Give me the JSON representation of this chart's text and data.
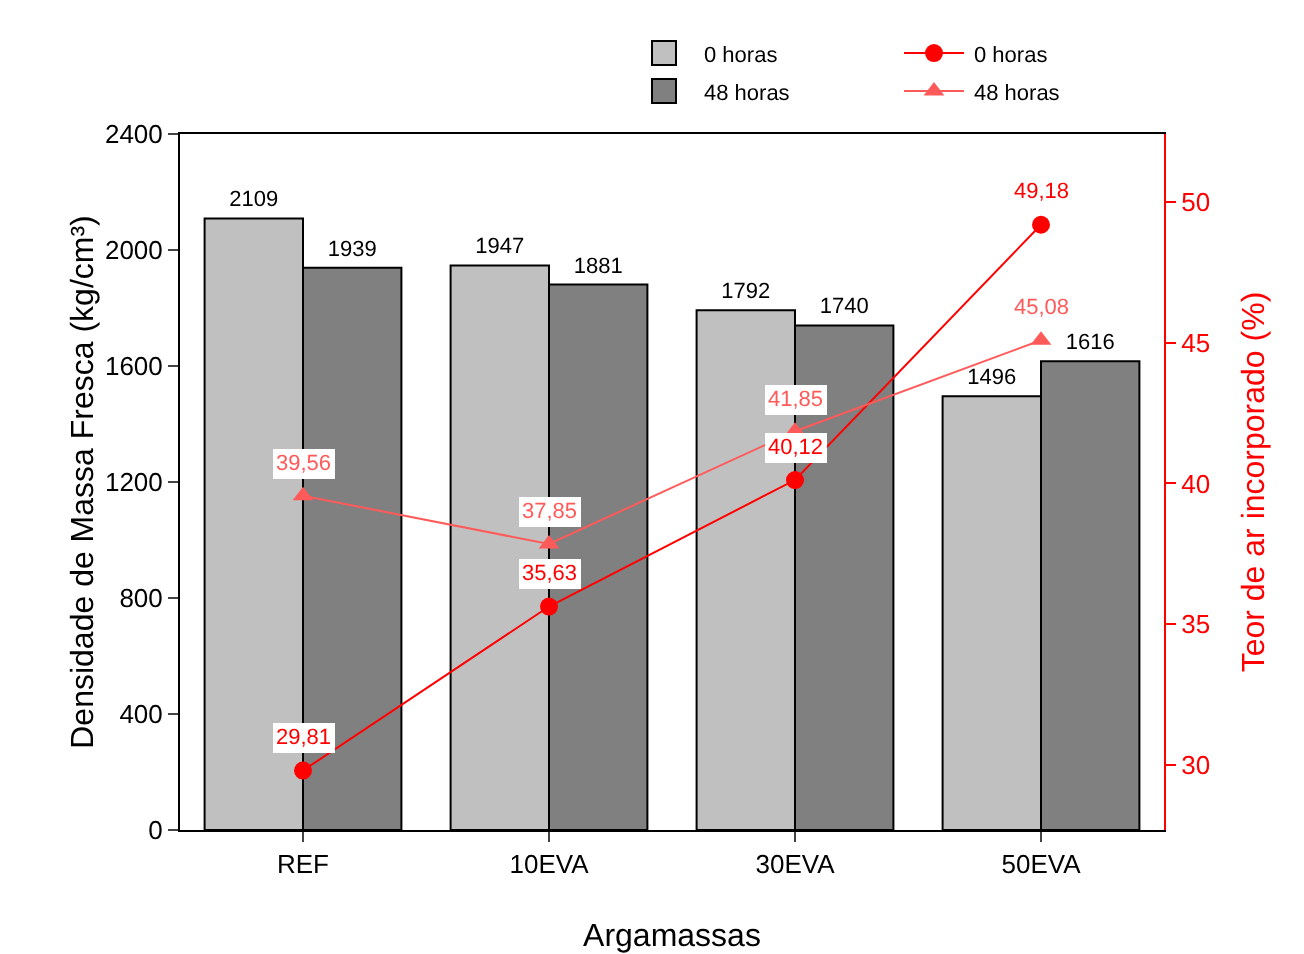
{
  "chart_data": {
    "type": "bar",
    "xlabel": "Argamassas",
    "ylabel": "Densidade de Massa Fresca (kg/cm³)",
    "y2label": "Teor de ar incorporado (%)",
    "categories": [
      "REF",
      "10EVA",
      "30EVA",
      "50EVA"
    ],
    "series": [
      {
        "name": "0 horas",
        "color": "#c0c0c0",
        "values": [
          2109,
          1947,
          1792,
          1496
        ],
        "value_labels": [
          "2109",
          "1947",
          "1792",
          "1496"
        ]
      },
      {
        "name": "48 horas",
        "color": "#808080",
        "values": [
          1939,
          1881,
          1740,
          1616
        ],
        "value_labels": [
          "1939",
          "1881",
          "1740",
          "1616"
        ]
      },
      {
        "name": "0 horas",
        "type": "line",
        "axis": "y2",
        "marker": "circle",
        "color": "#ff0000",
        "values": [
          29.81,
          35.63,
          40.12,
          49.18
        ],
        "value_labels": [
          "29,81",
          "35,63",
          "40,12",
          "49,18"
        ]
      },
      {
        "name": "48 horas",
        "type": "line",
        "axis": "y2",
        "marker": "triangle",
        "color": "#ff5a5a",
        "values": [
          39.56,
          37.85,
          41.85,
          45.08
        ],
        "value_labels": [
          "39,56",
          "37,85",
          "41,85",
          "45,08"
        ]
      }
    ],
    "ylim": [
      0,
      2400
    ],
    "yticks": [
      0,
      400,
      800,
      1200,
      1600,
      2000,
      2400
    ],
    "y2lim": [
      27.7,
      52.4
    ],
    "y2ticks": [
      30,
      35,
      40,
      45,
      50
    ],
    "grid": false,
    "legend": "top right",
    "line_style": "solid"
  }
}
